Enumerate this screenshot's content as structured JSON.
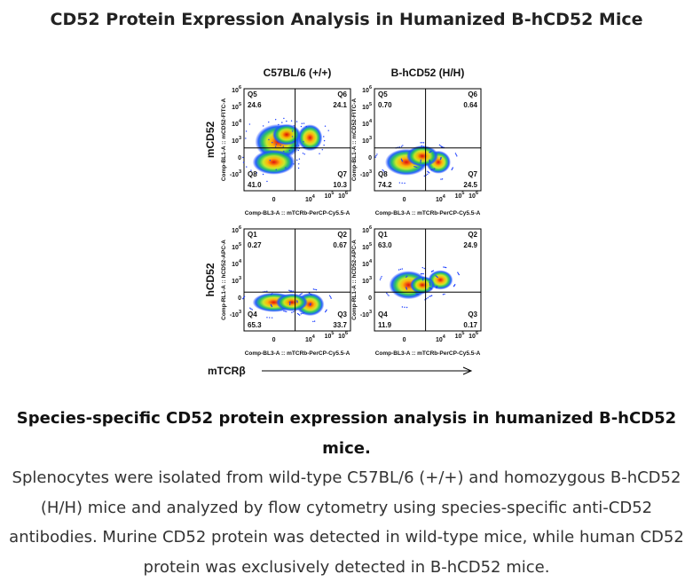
{
  "title": "CD52 Protein Expression Analysis in Humanized B-hCD52 Mice",
  "columns": [
    "C57BL/6 (+/+)",
    "B-hCD52 (H/H)"
  ],
  "x_axis": "Comp-BL3-A :: mTCRb-PerCP-Cy5.5-A",
  "x_label": "mTCRβ",
  "y_ticks": [
    {
      "base": "10",
      "exp": "6"
    },
    {
      "base": "10",
      "exp": "5"
    },
    {
      "base": "10",
      "exp": "4"
    },
    {
      "base": "10",
      "exp": "3"
    },
    {
      "base": "0"
    },
    {
      "base": "-10",
      "exp": "3"
    }
  ],
  "x_ticks": [
    {
      "base": "0"
    },
    {
      "base": "10",
      "exp": "4"
    },
    {
      "base": "10",
      "exp": "5"
    },
    {
      "base": "10",
      "exp": "6"
    }
  ],
  "rows": [
    {
      "label": "mCD52",
      "y_axis": "Comp-BL1-A :: mCD52-FITC-A",
      "panels": [
        {
          "quadrants": [
            {
              "name": "Q5",
              "value": "24.6"
            },
            {
              "name": "Q6",
              "value": "24.1"
            },
            {
              "name": "Q8",
              "value": "41.0"
            },
            {
              "name": "Q7",
              "value": "10.3"
            }
          ]
        },
        {
          "quadrants": [
            {
              "name": "Q5",
              "value": "0.70"
            },
            {
              "name": "Q6",
              "value": "0.64"
            },
            {
              "name": "Q8",
              "value": "74.2"
            },
            {
              "name": "Q7",
              "value": "24.5"
            }
          ]
        }
      ]
    },
    {
      "label": "hCD52",
      "y_axis": "Comp-RL1-A :: hCD52-APC-A",
      "panels": [
        {
          "quadrants": [
            {
              "name": "Q1",
              "value": "0.27"
            },
            {
              "name": "Q2",
              "value": "0.67"
            },
            {
              "name": "Q4",
              "value": "65.3"
            },
            {
              "name": "Q3",
              "value": "33.7"
            }
          ]
        },
        {
          "quadrants": [
            {
              "name": "Q1",
              "value": "63.0"
            },
            {
              "name": "Q2",
              "value": "24.9"
            },
            {
              "name": "Q4",
              "value": "11.9"
            },
            {
              "name": "Q3",
              "value": "0.17"
            }
          ]
        }
      ]
    }
  ],
  "caption": {
    "bold": "Species-specific CD52 protein expression analysis in humanized B-hCD52 mice.",
    "text": "Splenocytes were isolated from wild-type C57BL/6 (+/+) and homozygous B-hCD52 (H/H) mice and analyzed by flow cytometry using species-specific anti-CD52 antibodies. Murine CD52 protein was detected in wild-type mice, while human CD52 protein was exclusively detected in B-hCD52 mice."
  }
}
